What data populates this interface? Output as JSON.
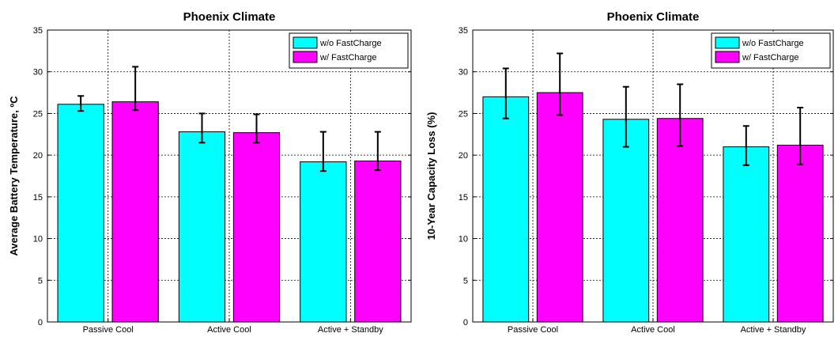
{
  "colors": {
    "series_1": "#00ffff",
    "series_2": "#ff00ff",
    "axis": "#000000",
    "grid": "#000000"
  },
  "chart_data": [
    {
      "type": "bar",
      "title": "Phoenix Climate",
      "xlabel": "",
      "ylabel": "Average Battery Temperature, ºC",
      "ylim": [
        0,
        35
      ],
      "yticks": [
        0,
        5,
        10,
        15,
        20,
        25,
        30,
        35
      ],
      "grid": true,
      "legend_position": "top-right",
      "categories": [
        "Passive Cool",
        "Active Cool",
        "Active + Standby"
      ],
      "series": [
        {
          "name": "w/o FastCharge",
          "values": [
            26.1,
            22.8,
            19.2
          ],
          "err_low": [
            25.3,
            21.5,
            18.1
          ],
          "err_high": [
            27.1,
            25.0,
            22.8
          ]
        },
        {
          "name": "w/ FastCharge",
          "values": [
            26.4,
            22.7,
            19.3
          ],
          "err_low": [
            25.4,
            21.5,
            18.2
          ],
          "err_high": [
            30.6,
            24.9,
            22.8
          ]
        }
      ]
    },
    {
      "type": "bar",
      "title": "Phoenix Climate",
      "xlabel": "",
      "ylabel": "10-Year Capacity Loss (%)",
      "ylim": [
        0,
        35
      ],
      "yticks": [
        0,
        5,
        10,
        15,
        20,
        25,
        30,
        35
      ],
      "grid": true,
      "legend_position": "top-right",
      "categories": [
        "Passive Cool",
        "Active Cool",
        "Active + Standby"
      ],
      "series": [
        {
          "name": "w/o FastCharge",
          "values": [
            27.0,
            24.3,
            21.0
          ],
          "err_low": [
            24.4,
            21.0,
            18.8
          ],
          "err_high": [
            30.4,
            28.2,
            23.5
          ]
        },
        {
          "name": "w/ FastCharge",
          "values": [
            27.5,
            24.4,
            21.2
          ],
          "err_low": [
            24.8,
            21.1,
            18.9
          ],
          "err_high": [
            32.2,
            28.5,
            25.7
          ]
        }
      ]
    }
  ]
}
